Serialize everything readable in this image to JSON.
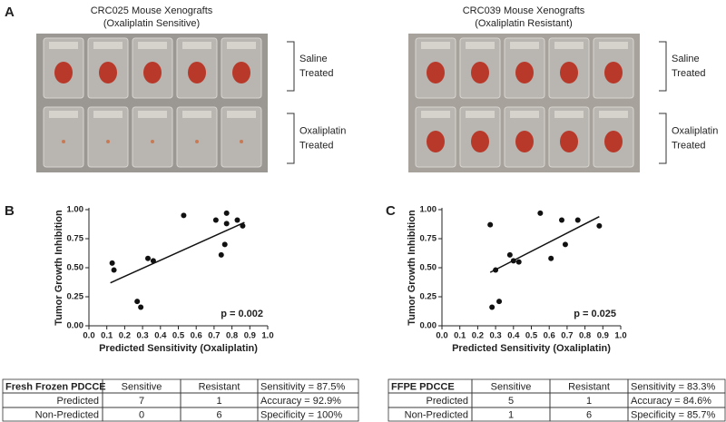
{
  "panel_a": {
    "label": "A",
    "photos": [
      {
        "title": [
          "CRC025 Mouse Xenografts",
          "(Oxaliplatin Sensitive)"
        ],
        "groups": [
          [
            "Saline",
            "Treated"
          ],
          [
            "Oxaliplatin",
            "Treated"
          ]
        ]
      },
      {
        "title": [
          "CRC039 Mouse Xenografts",
          "(Oxaliplatin Resistant)"
        ],
        "groups": [
          [
            "Saline",
            "Treated"
          ],
          [
            "Oxaliplatin",
            "Treated"
          ]
        ]
      }
    ]
  },
  "chart_data": [
    {
      "type": "scatter",
      "panel_label": "B",
      "x_label": "Predicted Sensitivity (Oxaliplatin)",
      "y_label": "Tumor Growth Inhibition",
      "x": [
        0.13,
        0.14,
        0.27,
        0.29,
        0.33,
        0.36,
        0.53,
        0.71,
        0.74,
        0.76,
        0.77,
        0.77,
        0.83,
        0.86
      ],
      "values": [
        0.54,
        0.48,
        0.21,
        0.16,
        0.58,
        0.56,
        0.95,
        0.91,
        0.61,
        0.7,
        0.97,
        0.88,
        0.91,
        0.86
      ],
      "color": "#111111",
      "fit": {
        "x": [
          0.12,
          0.87
        ],
        "values": [
          0.37,
          0.89
        ]
      },
      "annotation": "p = 0.002",
      "xlim": [
        0,
        1
      ],
      "ylim": [
        0,
        1
      ],
      "xticks": [
        {
          "value": 0,
          "label": "0.0"
        },
        0.1,
        0.2,
        0.3,
        0.4,
        0.5,
        0.6,
        0.7,
        0.8,
        0.9,
        {
          "value": 1,
          "label": "1.0"
        }
      ],
      "yticks": [
        {
          "value": 0,
          "label": "0.00"
        },
        0.25,
        {
          "value": 0.5,
          "label": "0.50"
        },
        0.75,
        {
          "value": 1,
          "label": "1.00"
        }
      ]
    },
    {
      "type": "scatter",
      "panel_label": "C",
      "x_label": "Predicted Sensitivity (Oxaliplatin)",
      "y_label": "Tumor Growth Inhibition",
      "x": [
        0.27,
        0.3,
        0.28,
        0.32,
        0.38,
        0.4,
        0.43,
        0.55,
        0.61,
        0.67,
        0.69,
        0.76,
        0.88
      ],
      "values": [
        0.87,
        0.48,
        0.16,
        0.21,
        0.61,
        0.56,
        0.55,
        0.97,
        0.58,
        0.91,
        0.7,
        0.91,
        0.86
      ],
      "color": "#111111",
      "fit": {
        "x": [
          0.27,
          0.88
        ],
        "values": [
          0.46,
          0.94
        ]
      },
      "annotation": "p = 0.025",
      "xlim": [
        0,
        1
      ],
      "ylim": [
        0,
        1
      ],
      "xticks": [
        {
          "value": 0,
          "label": "0.0"
        },
        0.1,
        0.2,
        0.3,
        0.4,
        0.5,
        0.6,
        0.7,
        0.8,
        0.9,
        {
          "value": 1,
          "label": "1.0"
        }
      ],
      "yticks": [
        {
          "value": 0,
          "label": "0.00"
        },
        0.25,
        {
          "value": 0.5,
          "label": "0.50"
        },
        0.75,
        {
          "value": 1,
          "label": "1.00"
        }
      ]
    }
  ],
  "tables": [
    {
      "rows": [
        [
          "Fresh Frozen PDCCE",
          "Sensitive",
          "Resistant",
          "Sensitivity = 87.5%"
        ],
        [
          "Predicted",
          "7",
          "1",
          "Accuracy = 92.9%"
        ],
        [
          "Non-Predicted",
          "0",
          "6",
          "Specificity = 100%"
        ]
      ]
    },
    {
      "rows": [
        [
          "FFPE PDCCE",
          "Sensitive",
          "Resistant",
          "Sensitivity = 83.3%"
        ],
        [
          "Predicted",
          "5",
          "1",
          "Accuracy = 84.6%"
        ],
        [
          "Non-Predicted",
          "1",
          "6",
          "Specificity = 85.7%"
        ]
      ]
    }
  ]
}
